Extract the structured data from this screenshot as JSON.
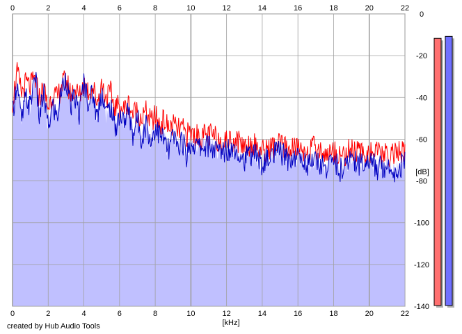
{
  "chart_data": {
    "type": "area",
    "xlabel": "[kHz]",
    "ylabel": "[dB]",
    "xlim": [
      0,
      22
    ],
    "ylim": [
      -140,
      0
    ],
    "x_ticks": [
      0,
      2,
      4,
      6,
      8,
      10,
      12,
      14,
      16,
      18,
      20,
      22
    ],
    "y_ticks": [
      0,
      -20,
      -40,
      -60,
      -80,
      -100,
      -120,
      -140
    ],
    "y_tick_labels": [
      "0",
      "-20",
      "-40",
      "-60",
      "-80",
      "-100",
      "-120",
      "-140"
    ],
    "grid": true,
    "fill_color": "#c0c0ff",
    "series": [
      {
        "color": "#ff0000",
        "x": [
          0,
          0.25,
          0.5,
          0.75,
          1,
          1.25,
          1.5,
          1.75,
          2,
          2.25,
          2.5,
          2.75,
          3,
          3.25,
          3.5,
          3.75,
          4,
          4.25,
          4.5,
          4.75,
          5,
          5.25,
          5.5,
          5.75,
          6,
          6.25,
          6.5,
          6.75,
          7,
          7.25,
          7.5,
          7.75,
          8,
          8.25,
          8.5,
          8.75,
          9,
          9.25,
          9.5,
          9.75,
          10,
          10.5,
          11,
          11.5,
          12,
          12.5,
          13,
          13.5,
          14,
          14.5,
          15,
          15.5,
          16,
          16.5,
          17,
          17.5,
          18,
          18.5,
          19,
          19.5,
          20,
          20.5,
          21,
          21.5,
          22
        ],
        "values": [
          -42,
          -28,
          -38,
          -33,
          -35,
          -31,
          -40,
          -36,
          -45,
          -38,
          -41,
          -34,
          -32,
          -38,
          -36,
          -40,
          -33,
          -37,
          -35,
          -42,
          -34,
          -40,
          -38,
          -45,
          -44,
          -46,
          -43,
          -48,
          -46,
          -50,
          -47,
          -52,
          -49,
          -53,
          -51,
          -55,
          -53,
          -56,
          -55,
          -58,
          -57,
          -59,
          -58,
          -60,
          -61,
          -60,
          -63,
          -62,
          -66,
          -64,
          -63,
          -65,
          -64,
          -66,
          -64,
          -67,
          -66,
          -68,
          -65,
          -67,
          -66,
          -67,
          -68,
          -66,
          -67
        ]
      },
      {
        "color": "#0000c0",
        "x": [
          0,
          0.25,
          0.5,
          0.75,
          1,
          1.25,
          1.5,
          1.75,
          2,
          2.25,
          2.5,
          2.75,
          3,
          3.25,
          3.5,
          3.75,
          4,
          4.25,
          4.5,
          4.75,
          5,
          5.25,
          5.5,
          5.75,
          6,
          6.25,
          6.5,
          6.75,
          7,
          7.25,
          7.5,
          7.75,
          8,
          8.25,
          8.5,
          8.75,
          9,
          9.25,
          9.5,
          9.75,
          10,
          10.5,
          11,
          11.5,
          12,
          12.5,
          13,
          13.5,
          14,
          14.5,
          15,
          15.5,
          16,
          16.5,
          17,
          17.5,
          18,
          18.5,
          19,
          19.5,
          20,
          20.5,
          21,
          21.5,
          22
        ],
        "values": [
          -48,
          -32,
          -52,
          -40,
          -45,
          -27,
          -50,
          -38,
          -55,
          -44,
          -50,
          -36,
          -30,
          -45,
          -40,
          -48,
          -32,
          -42,
          -38,
          -50,
          -36,
          -48,
          -44,
          -55,
          -48,
          -52,
          -46,
          -58,
          -50,
          -60,
          -52,
          -62,
          -54,
          -58,
          -60,
          -66,
          -58,
          -64,
          -60,
          -68,
          -62,
          -64,
          -63,
          -66,
          -65,
          -64,
          -70,
          -66,
          -72,
          -68,
          -66,
          -70,
          -68,
          -72,
          -70,
          -74,
          -70,
          -76,
          -68,
          -72,
          -70,
          -74,
          -72,
          -76,
          -70
        ]
      }
    ]
  },
  "level_meters": {
    "min": -140,
    "max": 0,
    "left": {
      "color": "#ff7070",
      "value": -6
    },
    "right": {
      "color": "#7070ff",
      "value": -5
    }
  },
  "credit": "created by Hub Audio Tools"
}
